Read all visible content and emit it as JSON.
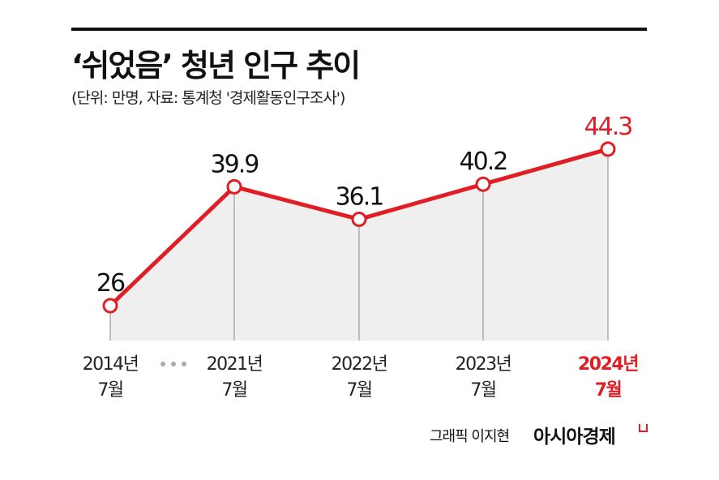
{
  "title": "‘쉬었음’ 청년 인구 추이",
  "subtitle": "(단위: 만명, 자료: 통계청 '경제활동인구조사')",
  "chart_data": {
    "type": "area",
    "categories": [
      [
        "2014년",
        "7월"
      ],
      [
        "2021년",
        "7월"
      ],
      [
        "2022년",
        "7월"
      ],
      [
        "2023년",
        "7월"
      ],
      [
        "2024년",
        "7월"
      ]
    ],
    "values": [
      26,
      39.9,
      36.1,
      40.2,
      44.3
    ],
    "value_labels": [
      "26",
      "39.9",
      "36.1",
      "40.2",
      "44.3"
    ],
    "highlight_index": 4,
    "axis_break_after_index": 0,
    "grid": false,
    "colors": {
      "line": "#e01e26",
      "fill": "#efefef",
      "highlight_text": "#e01e26",
      "text": "#111111",
      "dropline": "#888888",
      "break_dots": "#aaaaaa"
    }
  },
  "footer": {
    "credit": "그래픽 이지현",
    "brand": "아시아경제"
  }
}
